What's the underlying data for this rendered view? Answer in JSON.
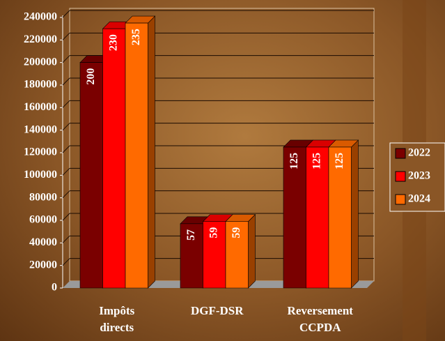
{
  "chart_data": {
    "type": "bar3d",
    "categories": [
      "Impôts directs",
      "DGF-DSR",
      "Reversement CCPDA"
    ],
    "series": [
      {
        "name": "2022",
        "color": "#7a0000",
        "values": [
          200000,
          57000,
          125000
        ],
        "value_labels": [
          "200",
          "57",
          "125"
        ]
      },
      {
        "name": "2023",
        "color": "#ff0000",
        "values": [
          230000,
          59000,
          125000
        ],
        "value_labels": [
          "230",
          "59",
          "125"
        ]
      },
      {
        "name": "2024",
        "color": "#ff6a00",
        "values": [
          235000,
          59000,
          125000
        ],
        "value_labels": [
          "235",
          "59",
          "125"
        ]
      }
    ],
    "ylim": [
      0,
      240000
    ],
    "yticks": [
      0,
      20000,
      40000,
      60000,
      80000,
      100000,
      120000,
      140000,
      160000,
      180000,
      200000,
      220000,
      240000
    ],
    "grid": true,
    "legend": "right"
  }
}
